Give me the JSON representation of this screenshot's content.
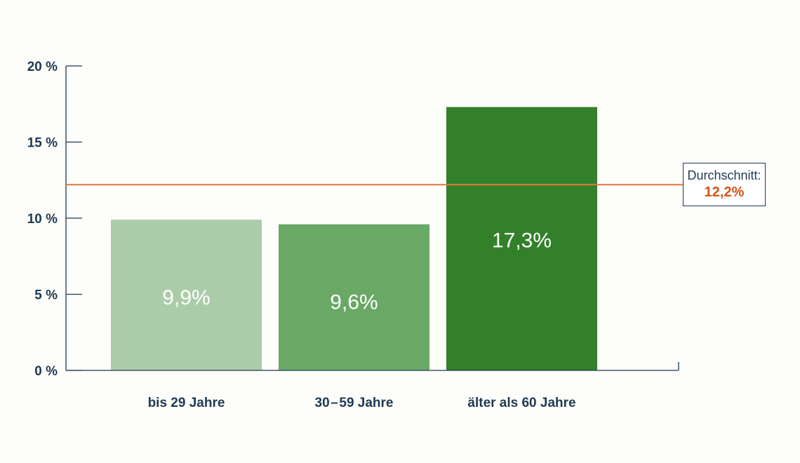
{
  "chart_data": {
    "type": "bar",
    "title": "",
    "xlabel": "",
    "ylabel": "",
    "ylim": [
      0,
      20
    ],
    "y_ticks": [
      0,
      5,
      10,
      15,
      20
    ],
    "y_tick_labels": [
      "0 %",
      "5 %",
      "10 %",
      "15 %",
      "20 %"
    ],
    "grid": false,
    "categories": [
      "bis 29 Jahre",
      "30 – 59 Jahre",
      "älter als 60 Jahre"
    ],
    "values": [
      9.9,
      9.6,
      17.3
    ],
    "data_labels": [
      "9,9%",
      "9,6%",
      "17,3%"
    ],
    "bar_colors": [
      "#abcca8",
      "#6aa866",
      "#33802b"
    ],
    "reference_line": {
      "value": 12.2,
      "label": "Durchschnitt:",
      "value_label": "12,2%",
      "color": "#e07a3c",
      "label_color": "#d2541a"
    },
    "axis_color": "#1f3a52"
  }
}
